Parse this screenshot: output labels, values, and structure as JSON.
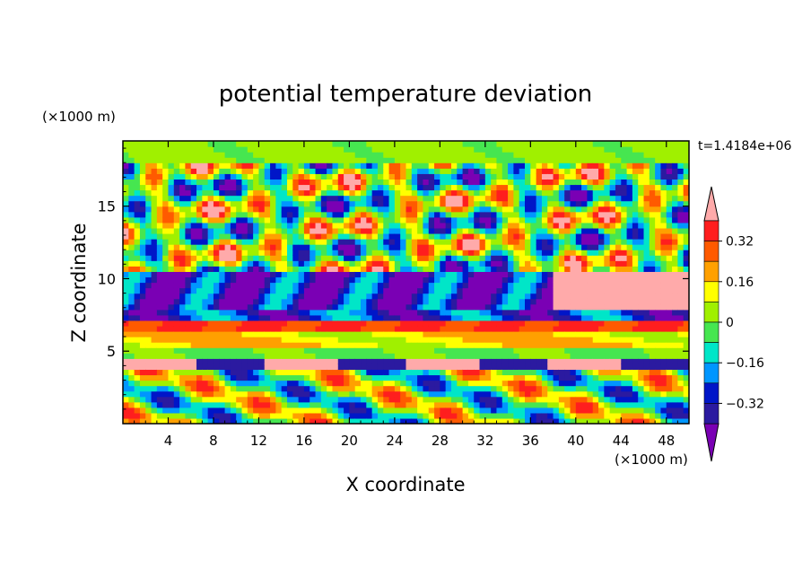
{
  "chart_data": {
    "type": "heatmap",
    "title": "potential temperature deviation",
    "xlabel": "X coordinate",
    "ylabel": "Z coordinate",
    "x_units": "(×1000 m)",
    "y_units": "(×1000 m)",
    "time_label": "t=1.4184e+06",
    "xlim": [
      0,
      50
    ],
    "ylim": [
      0,
      19.5
    ],
    "x_ticks": [
      4,
      8,
      12,
      16,
      20,
      24,
      28,
      32,
      36,
      40,
      44,
      48
    ],
    "y_ticks": [
      5,
      10,
      15
    ],
    "colorbar": {
      "levels": [
        -0.4,
        -0.32,
        -0.24,
        -0.16,
        -0.08,
        0,
        0.08,
        0.16,
        0.24,
        0.32,
        0.4
      ],
      "tick_labels": [
        "-0.32",
        "-0.16",
        "0",
        "0.16",
        "0.32"
      ],
      "tick_values": [
        -0.32,
        -0.16,
        0,
        0.16,
        0.32
      ],
      "colors": [
        "#7a00b4",
        "#2b1aa0",
        "#0016c8",
        "#0096ff",
        "#00e6c8",
        "#46e650",
        "#a0f000",
        "#ffff00",
        "#ffa000",
        "#ff5a00",
        "#ff1e1e",
        "#ffaaaa"
      ],
      "extend": "both"
    },
    "grid": false,
    "legend_placement": "right"
  }
}
